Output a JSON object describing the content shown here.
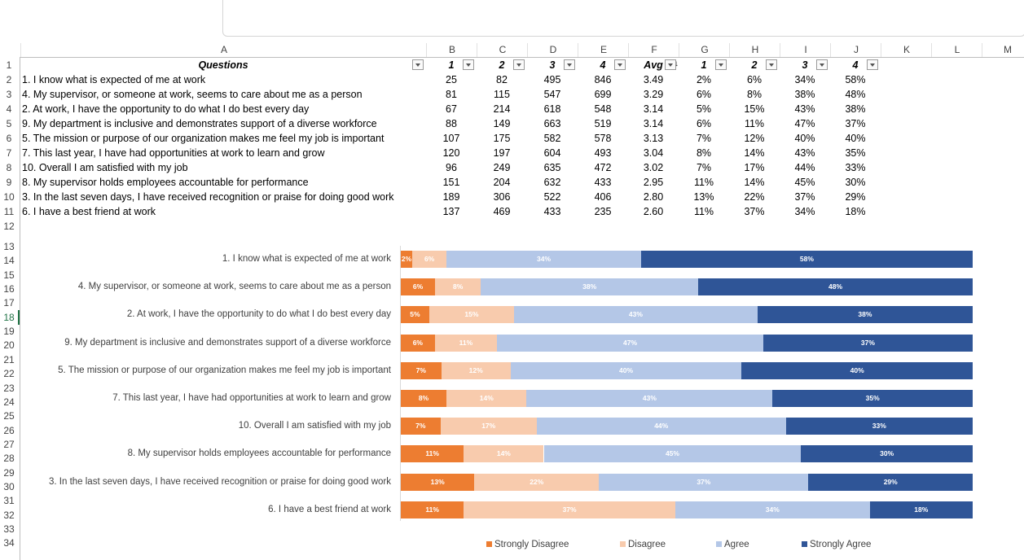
{
  "sheet": {
    "columns": [
      "A",
      "B",
      "C",
      "D",
      "E",
      "F",
      "G",
      "H",
      "I",
      "J",
      "K",
      "L",
      "M"
    ],
    "row_numbers": [
      1,
      2,
      3,
      4,
      5,
      6,
      7,
      8,
      9,
      10,
      11,
      12,
      13,
      14,
      15,
      16,
      17,
      18,
      19,
      20,
      21,
      22,
      23,
      24,
      25,
      26,
      27,
      28,
      29,
      30,
      31,
      32,
      33,
      34
    ],
    "selected_row": 18,
    "headers": [
      "Questions",
      "1",
      "2",
      "3",
      "4",
      "Avg",
      "1",
      "2",
      "3",
      "4"
    ],
    "rows": [
      {
        "q": "1. I know what is expected of me at work",
        "c1": "25",
        "c2": "82",
        "c3": "495",
        "c4": "846",
        "avg": "3.49",
        "p1": "2%",
        "p2": "6%",
        "p3": "34%",
        "p4": "58%"
      },
      {
        "q": "4. My supervisor, or someone at work, seems to care about me as a person",
        "c1": "81",
        "c2": "115",
        "c3": "547",
        "c4": "699",
        "avg": "3.29",
        "p1": "6%",
        "p2": "8%",
        "p3": "38%",
        "p4": "48%"
      },
      {
        "q": "2. At work, I have the opportunity to do what I do best every day",
        "c1": "67",
        "c2": "214",
        "c3": "618",
        "c4": "548",
        "avg": "3.14",
        "p1": "5%",
        "p2": "15%",
        "p3": "43%",
        "p4": "38%"
      },
      {
        "q": "9. My department is inclusive and demonstrates support of a diverse workforce",
        "c1": "88",
        "c2": "149",
        "c3": "663",
        "c4": "519",
        "avg": "3.14",
        "p1": "6%",
        "p2": "11%",
        "p3": "47%",
        "p4": "37%"
      },
      {
        "q": "5. The mission or purpose of our organization makes me feel my job is important",
        "c1": "107",
        "c2": "175",
        "c3": "582",
        "c4": "578",
        "avg": "3.13",
        "p1": "7%",
        "p2": "12%",
        "p3": "40%",
        "p4": "40%"
      },
      {
        "q": "7. This last year, I have had opportunities at work to learn and grow",
        "c1": "120",
        "c2": "197",
        "c3": "604",
        "c4": "493",
        "avg": "3.04",
        "p1": "8%",
        "p2": "14%",
        "p3": "43%",
        "p4": "35%"
      },
      {
        "q": "10. Overall I am satisfied with my job",
        "c1": "96",
        "c2": "249",
        "c3": "635",
        "c4": "472",
        "avg": "3.02",
        "p1": "7%",
        "p2": "17%",
        "p3": "44%",
        "p4": "33%"
      },
      {
        "q": "8. My supervisor holds employees accountable for performance",
        "c1": "151",
        "c2": "204",
        "c3": "632",
        "c4": "433",
        "avg": "2.95",
        "p1": "11%",
        "p2": "14%",
        "p3": "45%",
        "p4": "30%"
      },
      {
        "q": "3. In the last seven days, I have received recognition or praise for doing good work",
        "c1": "189",
        "c2": "306",
        "c3": "522",
        "c4": "406",
        "avg": "2.80",
        "p1": "13%",
        "p2": "22%",
        "p3": "37%",
        "p4": "29%"
      },
      {
        "q": "6. I have a best friend at work",
        "c1": "137",
        "c2": "469",
        "c3": "433",
        "c4": "235",
        "avg": "2.60",
        "p1": "11%",
        "p2": "37%",
        "p3": "34%",
        "p4": "18%"
      }
    ]
  },
  "chart_data": {
    "type": "bar",
    "orientation": "horizontal-stacked-100",
    "categories": [
      "1. I know what is expected of me at work",
      "4. My supervisor, or someone at work, seems to care about me as a person",
      "2. At work, I have the opportunity to do what I do best every day",
      "9. My department is inclusive and demonstrates support of a diverse workforce",
      "5. The mission or purpose of our organization makes me feel my job is important",
      "7. This last year, I have had opportunities at work to learn and grow",
      "10. Overall I am satisfied with my job",
      "8. My supervisor holds employees accountable for performance",
      "3. In the last seven days, I have received recognition or praise for doing good work",
      "6. I have a best friend at work"
    ],
    "series": [
      {
        "name": "Strongly Disagree",
        "color": "#ED7D31",
        "values": [
          2,
          6,
          5,
          6,
          7,
          8,
          7,
          11,
          13,
          11
        ]
      },
      {
        "name": "Disagree",
        "color": "#F8CBAD",
        "values": [
          6,
          8,
          15,
          11,
          12,
          14,
          17,
          14,
          22,
          37
        ]
      },
      {
        "name": "Agree",
        "color": "#B4C7E7",
        "values": [
          34,
          38,
          43,
          47,
          40,
          43,
          44,
          45,
          37,
          34
        ]
      },
      {
        "name": "Strongly Agree",
        "color": "#2F5597",
        "values": [
          58,
          48,
          38,
          37,
          40,
          35,
          33,
          30,
          29,
          18
        ]
      }
    ],
    "value_format": "percent",
    "legend_position": "bottom",
    "grid": false
  }
}
